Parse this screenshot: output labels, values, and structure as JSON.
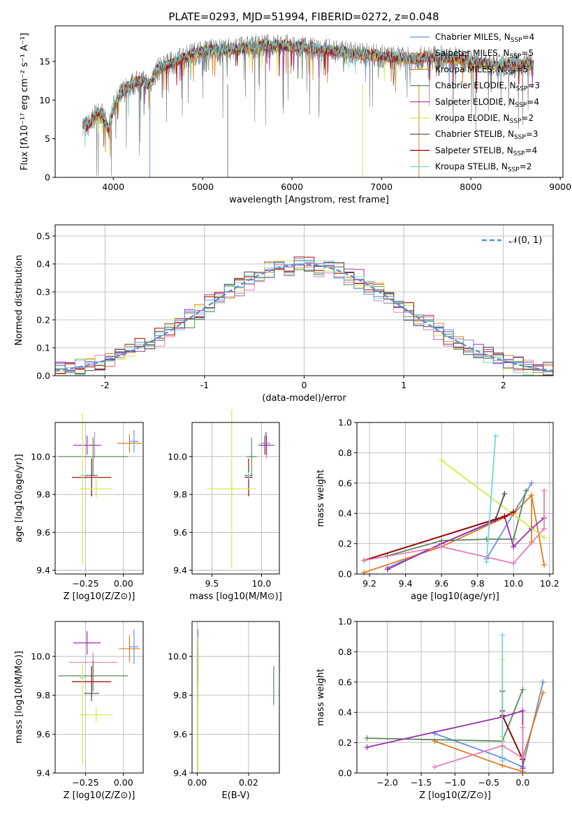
{
  "figure": {
    "title": "PLATE=0293, MJD=51994, FIBERID=0272, z=0.048"
  },
  "colors": {
    "blue": "#6a8fdc",
    "orange": "#e07b1e",
    "amber": "#d9881f",
    "green": "#5a8a5a",
    "purple": "#9c2fb0",
    "yellow": "#d4ea4a",
    "dark": "#4d4d4d",
    "red": "#a00000",
    "cyan": "#76d4d8",
    "pink": "#e37fb8",
    "grid": "#b0b0b0",
    "gauss": "#5b8fd9"
  },
  "chart_data": [
    {
      "id": "spectrum",
      "type": "line",
      "title": "PLATE=0293, MJD=51994, FIBERID=0272, z=0.048",
      "xlabel": "wavelength [Angstrom, rest frame]",
      "ylabel": "Flux [fλ10⁻¹⁷ erg cm⁻² s⁻¹ A⁻¹]",
      "xlim": [
        3350,
        9030
      ],
      "ylim": [
        0,
        19.6
      ],
      "xticks": [
        4000,
        5000,
        6000,
        7000,
        8000,
        9000
      ],
      "yticks": [
        0,
        5,
        10,
        15
      ],
      "grid": false,
      "legend": "upper-right",
      "continuum": {
        "x": [
          3650,
          3700,
          3750,
          3800,
          3850,
          3900,
          3950,
          4000,
          4100,
          4200,
          4300,
          4400,
          4500,
          4700,
          4900,
          5100,
          5300,
          5500,
          5700,
          5900,
          6100,
          6300,
          6500,
          6700,
          6900,
          7100,
          7300,
          7500,
          7700,
          7900,
          8100,
          8300,
          8500,
          8700
        ],
        "y": [
          7,
          6.5,
          7,
          8,
          8.5,
          7.5,
          6,
          9,
          11,
          12,
          12.5,
          12,
          14,
          15,
          16,
          16.5,
          16.5,
          16.8,
          17,
          17,
          16.8,
          16.5,
          16.3,
          16,
          15.8,
          15.5,
          15.3,
          15.5,
          15.5,
          15.2,
          14.8,
          14.5,
          14.8,
          14.5
        ]
      },
      "series": [
        {
          "name": "Chabrier MILES, N_SSP=4",
          "color": "blue"
        },
        {
          "name": "Salpeter MILES, N_SSP=5",
          "color": "orange"
        },
        {
          "name": "Kroupa MILES, N_SSP=5",
          "color": "amber"
        },
        {
          "name": "Chabrier ELODIE, N_SSP=3",
          "color": "green"
        },
        {
          "name": "Salpeter ELODIE, N_SSP=4",
          "color": "purple"
        },
        {
          "name": "Kroupa ELODIE, N_SSP=2",
          "color": "yellow"
        },
        {
          "name": "Chabrier STELIB, N_SSP=3",
          "color": "dark"
        },
        {
          "name": "Salpeter STELIB, N_SSP=4",
          "color": "red"
        },
        {
          "name": "Kroupa STELIB, N_SSP=2",
          "color": "cyan"
        }
      ],
      "legend_entries": [
        {
          "pre": "Chabrier MILES, N",
          "sub": "SSP",
          "post": "=4",
          "color": "blue"
        },
        {
          "pre": "Salpeter MILES, N",
          "sub": "SSP",
          "post": "=5",
          "color": "orange"
        },
        {
          "pre": "Kroupa MILES, N",
          "sub": "SSP",
          "post": "=5",
          "color": "amber"
        },
        {
          "pre": "Chabrier ELODIE, N",
          "sub": "SSP",
          "post": "=3",
          "color": "green"
        },
        {
          "pre": "Salpeter ELODIE, N",
          "sub": "SSP",
          "post": "=4",
          "color": "purple"
        },
        {
          "pre": "Kroupa ELODIE, N",
          "sub": "SSP",
          "post": "=2",
          "color": "yellow"
        },
        {
          "pre": "Chabrier STELIB, N",
          "sub": "SSP",
          "post": "=3",
          "color": "dark"
        },
        {
          "pre": "Salpeter STELIB, N",
          "sub": "SSP",
          "post": "=4",
          "color": "red"
        },
        {
          "pre": "Kroupa STELIB, N",
          "sub": "SSP",
          "post": "=2",
          "color": "cyan"
        }
      ]
    },
    {
      "id": "residuals",
      "type": "bar",
      "xlabel": "(data-model)/error",
      "ylabel": "Normed distribution",
      "xlim": [
        -2.5,
        2.5
      ],
      "ylim": [
        0,
        0.54
      ],
      "xticks": [
        -2,
        -1,
        0,
        1,
        2
      ],
      "yticks": [
        0.0,
        0.1,
        0.2,
        0.3,
        0.4,
        0.5
      ],
      "grid": true,
      "legend": "upper-right",
      "legend_label": "𝒩(0, 1)",
      "gaussian": {
        "mean": 0,
        "sigma": 1,
        "color": "gauss",
        "style": "dashed"
      },
      "bin_width": 0.1,
      "series": [
        {
          "color": "purple",
          "values_note": "",
          "scale": 1.04
        },
        {
          "color": "orange",
          "scale": 1.0
        },
        {
          "color": "green",
          "scale": 0.97
        },
        {
          "color": "yellow",
          "scale": 1.01
        },
        {
          "color": "pink",
          "scale": 0.96
        },
        {
          "color": "red",
          "scale": 1.02
        },
        {
          "color": "cyan",
          "scale": 0.99
        },
        {
          "color": "dark",
          "scale": 1.0
        },
        {
          "color": "blue",
          "scale": 0.98
        }
      ]
    },
    {
      "id": "age-vs-Z",
      "type": "scatter",
      "xlabel": "Z [log10(Z/Z⊙)]",
      "ylabel": "age  [log10(age/yr)]",
      "xlim": [
        -0.45,
        0.13
      ],
      "ylim": [
        9.38,
        10.18
      ],
      "xticks": [
        -0.25,
        0.0
      ],
      "xticklabels": [
        "−0.25",
        "0.00"
      ],
      "yticks": [
        9.4,
        9.6,
        9.8,
        10.0
      ],
      "yticklabels": [
        "9.4",
        "9.6",
        "9.8",
        "10.0"
      ],
      "grid": true,
      "points": [
        {
          "x": -0.19,
          "y": 10.06,
          "xerr": 0.05,
          "yerr": 0.07,
          "color": "pink"
        },
        {
          "x": -0.24,
          "y": 10.06,
          "xerr": 0.09,
          "yerr": 0.05,
          "color": "purple"
        },
        {
          "x": 0.04,
          "y": 10.07,
          "xerr": 0.08,
          "yerr": 0.05,
          "color": "orange"
        },
        {
          "x": 0.07,
          "y": 10.08,
          "xerr": 0.03,
          "yerr": 0.06,
          "color": "blue"
        },
        {
          "x": -0.2,
          "y": 10.0,
          "xerr": 0.23,
          "yerr": 0.1,
          "color": "green"
        },
        {
          "x": -0.21,
          "y": 9.89,
          "xerr": 0.13,
          "yerr": 0.1,
          "color": "red"
        },
        {
          "x": -0.21,
          "y": 9.9,
          "xerr": 0.04,
          "yerr": 0.05,
          "color": "dark"
        },
        {
          "x": -0.27,
          "y": 9.9,
          "xerr": 0.02,
          "yerr": 0.03,
          "color": "cyan"
        },
        {
          "x": -0.18,
          "y": 9.83,
          "xerr": 0.11,
          "yerr": 0.05,
          "color": "yellow"
        },
        {
          "x": -0.27,
          "y": 9.83,
          "xerr": 0.01,
          "yerr": 0.4,
          "color": "yellow"
        }
      ]
    },
    {
      "id": "age-vs-mass",
      "type": "scatter",
      "xlabel": "mass [log10(M/M⊙)]",
      "ylabel": "",
      "xlim": [
        9.3,
        10.18
      ],
      "ylim": [
        9.38,
        10.18
      ],
      "xticks": [
        9.5,
        10.0
      ],
      "xticklabels": [
        "9.5",
        "10.0"
      ],
      "yticks": [
        9.4,
        9.6,
        9.8,
        10.0
      ],
      "yticklabels": [
        "9.4",
        "9.6",
        "9.8",
        "10.0"
      ],
      "grid": true,
      "points": [
        {
          "x": 10.04,
          "y": 10.07,
          "xerr": 0.05,
          "yerr": 0.06,
          "color": "blue"
        },
        {
          "x": 10.03,
          "y": 10.06,
          "xerr": 0.06,
          "yerr": 0.05,
          "color": "orange"
        },
        {
          "x": 10.05,
          "y": 10.06,
          "xerr": 0.04,
          "yerr": 0.07,
          "color": "pink"
        },
        {
          "x": 10.05,
          "y": 10.06,
          "xerr": 0.08,
          "yerr": 0.05,
          "color": "purple"
        },
        {
          "x": 9.9,
          "y": 10.0,
          "xerr": 0.05,
          "yerr": 0.1,
          "color": "green"
        },
        {
          "x": 9.87,
          "y": 9.89,
          "xerr": 0.04,
          "yerr": 0.1,
          "color": "red"
        },
        {
          "x": 9.87,
          "y": 9.9,
          "xerr": 0.04,
          "yerr": 0.05,
          "color": "dark"
        },
        {
          "x": 9.87,
          "y": 9.9,
          "xerr": 0.01,
          "yerr": 0.02,
          "color": "cyan"
        },
        {
          "x": 9.7,
          "y": 9.83,
          "xerr": 0.25,
          "yerr": 0.04,
          "color": "yellow"
        },
        {
          "x": 9.7,
          "y": 9.83,
          "xerr": 0.01,
          "yerr": 0.42,
          "color": "yellow"
        }
      ]
    },
    {
      "id": "weight-vs-age",
      "type": "line",
      "xlabel": "age  [log10(age/yr)]",
      "ylabel": "mass weight",
      "xlim": [
        9.13,
        10.22
      ],
      "ylim": [
        0,
        1
      ],
      "xticks": [
        9.2,
        9.4,
        9.6,
        9.8,
        10.0,
        10.2
      ],
      "xticklabels": [
        "9.2",
        "9.4",
        "9.6",
        "9.8",
        "10.0",
        "10.2"
      ],
      "yticks": [
        0.0,
        0.2,
        0.4,
        0.6,
        0.8,
        1.0
      ],
      "yticklabels": [
        "0.0",
        "0.2",
        "0.4",
        "0.6",
        "0.8",
        "1.0"
      ],
      "grid": true,
      "series": [
        {
          "color": "blue",
          "x": [
            9.3,
            9.6,
            10.0,
            10.1,
            9.85
          ],
          "y": [
            0.04,
            0.2,
            0.4,
            0.6,
            0.1
          ]
        },
        {
          "color": "orange",
          "x": [
            9.17,
            9.6,
            10.0,
            10.1,
            10.17
          ],
          "y": [
            0.01,
            0.18,
            0.4,
            0.52,
            0.06
          ]
        },
        {
          "color": "amber",
          "x": [
            10.1,
            10.1
          ],
          "y": [
            0.52,
            0.21
          ]
        },
        {
          "color": "green",
          "x": [
            9.3,
            9.6,
            9.85,
            10.0,
            10.07
          ],
          "y": [
            0.12,
            0.22,
            0.23,
            0.23,
            0.55
          ]
        },
        {
          "color": "purple",
          "x": [
            9.3,
            9.6,
            9.95,
            10.0,
            10.1,
            10.17
          ],
          "y": [
            0.03,
            0.2,
            0.38,
            0.18,
            0.3,
            0.37
          ]
        },
        {
          "color": "yellow",
          "x": [
            9.6,
            10.17
          ],
          "y": [
            0.75,
            0.24
          ]
        },
        {
          "color": "dark",
          "x": [
            9.17,
            9.9,
            9.95
          ],
          "y": [
            0.09,
            0.36,
            0.53
          ]
        },
        {
          "color": "red",
          "x": [
            9.17,
            9.95,
            10.0
          ],
          "y": [
            0.09,
            0.38,
            0.41
          ]
        },
        {
          "color": "cyan",
          "x": [
            9.85,
            9.9
          ],
          "y": [
            0.08,
            0.91
          ]
        },
        {
          "color": "pink",
          "x": [
            9.17,
            9.6,
            10.0,
            10.17,
            10.17
          ],
          "y": [
            0.09,
            0.18,
            0.07,
            0.3,
            0.55
          ]
        }
      ]
    },
    {
      "id": "mass-vs-Z",
      "type": "scatter",
      "xlabel": "Z [log10(Z/Z⊙)]",
      "ylabel": "mass [log10(M/M⊙)]",
      "xlim": [
        -0.45,
        0.13
      ],
      "ylim": [
        9.4,
        10.18
      ],
      "xticks": [
        -0.25,
        0.0
      ],
      "xticklabels": [
        "−0.25",
        "0.00"
      ],
      "yticks": [
        9.4,
        9.6,
        9.8,
        10.0
      ],
      "yticklabels": [
        "9.4",
        "9.6",
        "9.8",
        "10.0"
      ],
      "grid": true,
      "points": [
        {
          "x": -0.24,
          "y": 10.07,
          "xerr": 0.09,
          "yerr": 0.06,
          "color": "purple"
        },
        {
          "x": 0.04,
          "y": 10.04,
          "xerr": 0.07,
          "yerr": 0.07,
          "color": "orange"
        },
        {
          "x": 0.07,
          "y": 10.05,
          "xerr": 0.03,
          "yerr": 0.09,
          "color": "blue"
        },
        {
          "x": -0.2,
          "y": 9.97,
          "xerr": 0.16,
          "yerr": 0.05,
          "color": "pink"
        },
        {
          "x": -0.2,
          "y": 9.9,
          "xerr": 0.23,
          "yerr": 0.08,
          "color": "green"
        },
        {
          "x": -0.21,
          "y": 9.87,
          "xerr": 0.13,
          "yerr": 0.08,
          "color": "red"
        },
        {
          "x": -0.21,
          "y": 9.81,
          "xerr": 0.05,
          "yerr": 0.04,
          "color": "dark"
        },
        {
          "x": -0.27,
          "y": 9.89,
          "xerr": 0.02,
          "yerr": 0.02,
          "color": "cyan"
        },
        {
          "x": -0.18,
          "y": 9.7,
          "xerr": 0.11,
          "yerr": 0.04,
          "color": "yellow"
        },
        {
          "x": -0.27,
          "y": 9.7,
          "xerr": 0.01,
          "yerr": 0.26,
          "color": "yellow"
        }
      ]
    },
    {
      "id": "mass-vs-ebv",
      "type": "scatter",
      "xlabel": "E(B-V)",
      "ylabel": "",
      "xlim": [
        -0.002,
        0.032
      ],
      "ylim": [
        9.4,
        10.18
      ],
      "xticks": [
        0.0,
        0.02
      ],
      "xticklabels": [
        "0.00",
        "0.02"
      ],
      "yticks": [
        9.4,
        9.6,
        9.8,
        10.0
      ],
      "yticklabels": [
        "9.4",
        "9.6",
        "9.8",
        "10.0"
      ],
      "grid": true,
      "points": [
        {
          "x": 0.0003,
          "y": 10.02,
          "xerr": 0.0,
          "yerr": 0.12,
          "color": "blue"
        },
        {
          "x": 0.0003,
          "y": 10.0,
          "xerr": 0.0,
          "yerr": 0.1,
          "color": "purple"
        },
        {
          "x": 0.0003,
          "y": 9.96,
          "xerr": 0.0,
          "yerr": 0.1,
          "color": "red"
        },
        {
          "x": 0.0003,
          "y": 9.9,
          "xerr": 0.0,
          "yerr": 0.12,
          "color": "dark"
        },
        {
          "x": 0.0003,
          "y": 9.75,
          "xerr": 0.0,
          "yerr": 0.35,
          "color": "yellow"
        },
        {
          "x": 0.0298,
          "y": 9.85,
          "xerr": 0.0,
          "yerr": 0.1,
          "color": "green"
        }
      ]
    },
    {
      "id": "weight-vs-Z",
      "type": "line",
      "xlabel": "Z [log10(Z/Z⊙)]",
      "ylabel": "mass weight",
      "xlim": [
        -2.45,
        0.45
      ],
      "ylim": [
        0,
        1
      ],
      "xticks": [
        -2.0,
        -1.5,
        -1.0,
        -0.5,
        0.0
      ],
      "xticklabels": [
        "−2.0",
        "−1.5",
        "−1.0",
        "−0.5",
        "0.0"
      ],
      "yticks": [
        0.0,
        0.2,
        0.4,
        0.6,
        0.8,
        1.0
      ],
      "yticklabels": [
        "0.0",
        "0.2",
        "0.4",
        "0.6",
        "0.8",
        "1.0"
      ],
      "grid": true,
      "series": [
        {
          "color": "blue",
          "x": [
            -1.3,
            -0.3,
            0.0,
            0.3
          ],
          "y": [
            0.26,
            0.1,
            0.04,
            0.6
          ]
        },
        {
          "color": "orange",
          "x": [
            -1.3,
            -0.3,
            0.0,
            0.0,
            0.3
          ],
          "y": [
            0.21,
            0.05,
            0.01,
            0.1,
            0.53
          ]
        },
        {
          "color": "green",
          "x": [
            -2.3,
            -0.3,
            0.0
          ],
          "y": [
            0.23,
            0.21,
            0.55
          ]
        },
        {
          "color": "purple",
          "x": [
            -2.3,
            -0.3,
            0.0,
            0.0
          ],
          "y": [
            0.17,
            0.37,
            0.41,
            0.03
          ]
        },
        {
          "color": "yellow",
          "x": [
            -0.3,
            -0.3
          ],
          "y": [
            0.75,
            0.24
          ]
        },
        {
          "color": "dark",
          "x": [
            -0.3,
            -0.3,
            0.0
          ],
          "y": [
            0.54,
            0.38,
            0.09
          ]
        },
        {
          "color": "red",
          "x": [
            -0.3,
            -0.3,
            0.0
          ],
          "y": [
            0.41,
            0.38,
            0.09
          ]
        },
        {
          "color": "cyan",
          "x": [
            -0.3,
            -0.3
          ],
          "y": [
            0.08,
            0.91
          ]
        },
        {
          "color": "pink",
          "x": [
            -1.3,
            -0.3,
            0.0,
            0.0
          ],
          "y": [
            0.04,
            0.18,
            0.1,
            0.3
          ]
        }
      ]
    }
  ]
}
